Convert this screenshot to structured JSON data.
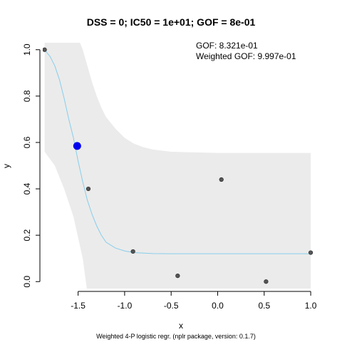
{
  "chart_data": {
    "type": "scatter",
    "title": "DSS = 0; IC50 = 1e+01; GOF = 8e-01",
    "xlabel": "x",
    "ylabel": "y",
    "footer": "Weighted 4-P logistic regr. (nplr package, version: 0.1.7)",
    "annotations": [
      "GOF: 8.321e-01",
      "Weighted GOF: 9.997e-01"
    ],
    "xlim": [
      -1.88,
      1.03
    ],
    "ylim": [
      -0.03,
      1.03
    ],
    "x_ticks": [
      -1.5,
      -1.0,
      -0.5,
      0.0,
      0.5,
      1.0
    ],
    "x_tick_labels": [
      "-1.5",
      "-1.0",
      "-0.5",
      "0.0",
      "0.5",
      "1.0"
    ],
    "y_ticks": [
      0.0,
      0.2,
      0.4,
      0.6,
      0.8,
      1.0
    ],
    "y_tick_labels": [
      "0.0",
      "0.2",
      "0.4",
      "0.6",
      "0.8",
      "1.0"
    ],
    "grid": false,
    "points": {
      "x": [
        -1.86,
        -1.39,
        -0.91,
        -0.43,
        0.04,
        0.52,
        1.0
      ],
      "y": [
        1.0,
        0.4,
        0.13,
        0.025,
        0.44,
        0.0,
        0.125
      ],
      "color": "#555555"
    },
    "ic50_marker": {
      "x": -1.51,
      "y": 0.585,
      "color": "#0000ee"
    },
    "fitted_curve": {
      "color": "#87ceeb",
      "x": [
        -1.86,
        -1.8,
        -1.75,
        -1.7,
        -1.65,
        -1.6,
        -1.55,
        -1.5,
        -1.45,
        -1.4,
        -1.35,
        -1.3,
        -1.25,
        -1.2,
        -1.1,
        -1.0,
        -0.9,
        -0.7,
        -0.5,
        0.0,
        0.5,
        1.0
      ],
      "y": [
        1.0,
        0.97,
        0.93,
        0.87,
        0.79,
        0.7,
        0.62,
        0.52,
        0.43,
        0.35,
        0.29,
        0.24,
        0.2,
        0.17,
        0.145,
        0.132,
        0.125,
        0.121,
        0.12,
        0.12,
        0.12,
        0.12
      ]
    },
    "confidence_band": {
      "color": "#ebebeb",
      "x": [
        -1.86,
        -1.75,
        -1.65,
        -1.55,
        -1.45,
        -1.4,
        -1.35,
        -1.3,
        -1.25,
        -1.2,
        -1.1,
        -1.0,
        -0.9,
        -0.8,
        -0.7,
        -0.6,
        -0.5,
        0.0,
        0.5,
        1.0
      ],
      "upper": [
        1.1,
        1.1,
        1.1,
        1.1,
        1.0,
        0.93,
        0.86,
        0.8,
        0.75,
        0.71,
        0.66,
        0.62,
        0.595,
        0.58,
        0.57,
        0.565,
        0.56,
        0.555,
        0.555,
        0.555
      ],
      "lower": [
        0.56,
        0.5,
        0.4,
        0.28,
        0.1,
        -0.05,
        -0.05,
        -0.05,
        -0.05,
        -0.05,
        -0.05,
        -0.05,
        -0.05,
        -0.05,
        -0.05,
        -0.05,
        -0.05,
        -0.05,
        -0.05,
        -0.05
      ]
    }
  }
}
